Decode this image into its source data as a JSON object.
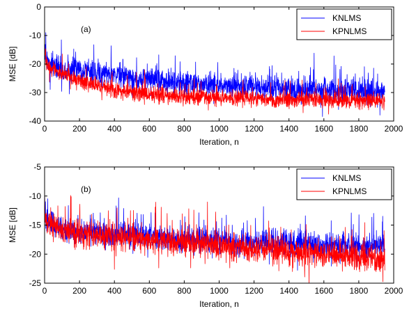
{
  "chart_data": [
    {
      "type": "line",
      "annotation": "(a)",
      "xlabel": "Iteration, n",
      "ylabel": "MSE [dB]",
      "xlim": [
        0,
        2000
      ],
      "ylim": [
        -40,
        0
      ],
      "x_ticks": [
        0,
        200,
        400,
        600,
        800,
        1000,
        1200,
        1400,
        1600,
        1800,
        2000
      ],
      "y_ticks": [
        -40,
        -30,
        -20,
        -10,
        0
      ],
      "n_points": 1950,
      "legend_position": "top-right",
      "series": [
        {
          "name": "KNLMS",
          "color": "#0000ff",
          "trend": {
            "x": [
              0,
              2,
              10,
              30,
              100,
              200,
              300,
              400,
              500,
              600,
              700,
              800,
              900,
              1000,
              1100,
              1200,
              1300,
              1400,
              1500,
              1600,
              1700,
              1800,
              1950
            ],
            "y": [
              -12,
              -16,
              -19,
              -20,
              -21.5,
              -22.5,
              -23.5,
              -24,
              -25,
              -25.5,
              -26,
              -26.5,
              -27,
              -27.5,
              -27.5,
              -28,
              -28.5,
              -28.5,
              -29,
              -29,
              -29.5,
              -29.5,
              -30
            ]
          },
          "noise_db": 2.0
        },
        {
          "name": "KPNLMS",
          "color": "#ff0000",
          "trend": {
            "x": [
              0,
              2,
              10,
              30,
              100,
              200,
              300,
              400,
              500,
              600,
              700,
              800,
              900,
              1000,
              1100,
              1200,
              1300,
              1400,
              1500,
              1600,
              1700,
              1800,
              1950
            ],
            "y": [
              -12,
              -17,
              -20,
              -21.5,
              -23.5,
              -26,
              -27.5,
              -29,
              -30,
              -30.5,
              -31,
              -31.5,
              -31.5,
              -32,
              -32,
              -32,
              -32.5,
              -32.5,
              -32.5,
              -32.5,
              -33,
              -33,
              -33
            ]
          },
          "noise_db": 1.3
        }
      ]
    },
    {
      "type": "line",
      "annotation": "(b)",
      "xlabel": "Iteration, n",
      "ylabel": "MSE [dB]",
      "xlim": [
        0,
        2000
      ],
      "ylim": [
        -25,
        -5
      ],
      "x_ticks": [
        0,
        200,
        400,
        600,
        800,
        1000,
        1200,
        1400,
        1600,
        1800,
        2000
      ],
      "y_ticks": [
        -25,
        -20,
        -15,
        -10,
        -5
      ],
      "n_points": 1950,
      "legend_position": "top-right",
      "series": [
        {
          "name": "KNLMS",
          "color": "#0000ff",
          "trend": {
            "x": [
              0,
              2,
              10,
              50,
              100,
              200,
              400,
              600,
              800,
              1000,
              1200,
              1400,
              1600,
              1800,
              1950
            ],
            "y": [
              -9,
              -13,
              -14.5,
              -15,
              -15.5,
              -16,
              -16.5,
              -17,
              -17.5,
              -18,
              -18,
              -18,
              -18.5,
              -18.5,
              -18.5
            ]
          },
          "noise_db": 1.0
        },
        {
          "name": "KPNLMS",
          "color": "#ff0000",
          "trend": {
            "x": [
              0,
              2,
              10,
              50,
              100,
              200,
              400,
              600,
              800,
              1000,
              1200,
              1400,
              1600,
              1800,
              1950
            ],
            "y": [
              -9,
              -13,
              -14.5,
              -15,
              -15.5,
              -16.5,
              -17,
              -17.5,
              -18,
              -18.5,
              -19,
              -19.5,
              -20,
              -20.5,
              -21
            ]
          },
          "noise_db": 1.1
        }
      ]
    }
  ]
}
